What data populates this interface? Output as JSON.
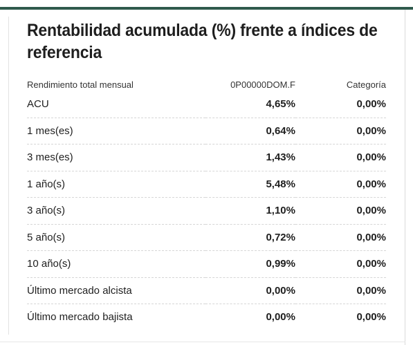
{
  "title": "Rentabilidad acumulada (%) frente a índices de referencia",
  "table": {
    "headers": [
      "Rendimiento total mensual",
      "0P00000DOM.F",
      "Categoría"
    ],
    "rows": [
      {
        "label": "ACU",
        "fund": "4,65%",
        "category": "0,00%"
      },
      {
        "label": "1 mes(es)",
        "fund": "0,64%",
        "category": "0,00%"
      },
      {
        "label": "3 mes(es)",
        "fund": "1,43%",
        "category": "0,00%"
      },
      {
        "label": "1 año(s)",
        "fund": "5,48%",
        "category": "0,00%"
      },
      {
        "label": "3 año(s)",
        "fund": "1,10%",
        "category": "0,00%"
      },
      {
        "label": "5 año(s)",
        "fund": "0,72%",
        "category": "0,00%"
      },
      {
        "label": "10 año(s)",
        "fund": "0,99%",
        "category": "0,00%"
      },
      {
        "label": "Último mercado alcista",
        "fund": "0,00%",
        "category": "0,00%"
      },
      {
        "label": "Último mercado bajista",
        "fund": "0,00%",
        "category": "0,00%"
      }
    ]
  },
  "colors": {
    "accent": "#2f5a4c",
    "text": "#1e1e1e",
    "divider": "#d6d6d6"
  }
}
